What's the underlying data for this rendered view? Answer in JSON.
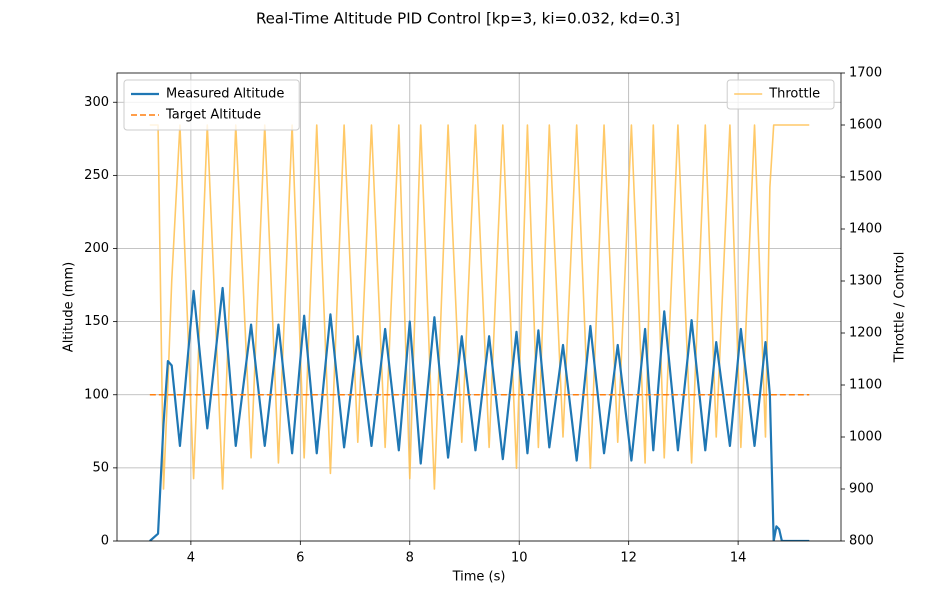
{
  "chart_data": {
    "type": "line",
    "title": "Real-Time Altitude PID Control [kp=3, ki=0.032, kd=0.3]",
    "xlabel": "Time (s)",
    "ylabel": "Altitude (mm)",
    "y2label": "Throttle / Control",
    "x": [
      3.25,
      3.4,
      3.5,
      3.58,
      3.65,
      3.8,
      4.05,
      4.3,
      4.58,
      4.82,
      5.1,
      5.35,
      5.6,
      5.85,
      6.07,
      6.3,
      6.55,
      6.8,
      7.05,
      7.3,
      7.55,
      7.8,
      8.0,
      8.2,
      8.45,
      8.7,
      8.95,
      9.2,
      9.45,
      9.7,
      9.95,
      10.15,
      10.35,
      10.55,
      10.8,
      11.05,
      11.3,
      11.55,
      11.8,
      12.05,
      12.3,
      12.45,
      12.65,
      12.9,
      13.15,
      13.4,
      13.6,
      13.85,
      14.05,
      14.3,
      14.5,
      14.58,
      14.65,
      14.7,
      14.75,
      14.8,
      15.3
    ],
    "series": [
      {
        "name": "Measured Altitude",
        "color": "#1f77b4",
        "width": 2.2,
        "values": [
          0,
          5,
          80,
          123,
          120,
          65,
          171,
          77,
          173,
          65,
          148,
          65,
          148,
          60,
          154,
          60,
          155,
          64,
          140,
          65,
          145,
          62,
          150,
          53,
          153,
          57,
          140,
          62,
          140,
          56,
          143,
          60,
          144,
          64,
          134,
          55,
          147,
          60,
          134,
          55,
          145,
          62,
          157,
          62,
          151,
          62,
          136,
          65,
          145,
          65,
          136,
          100,
          0,
          10,
          8,
          0,
          0
        ]
      },
      {
        "name": "Target Altitude",
        "color": "#ff7f0e",
        "width": 1.6,
        "linestyle": "dashed",
        "x": [
          3.25,
          15.3
        ],
        "values": [
          100,
          100
        ]
      },
      {
        "name": "Throttle",
        "color": "#ffc04d",
        "width": 1.6,
        "opacity": 0.85,
        "axis": "y2",
        "values": [
          1600,
          1600,
          900,
          1100,
          1300,
          1600,
          920,
          1600,
          900,
          1600,
          960,
          1600,
          950,
          1600,
          960,
          1600,
          930,
          1600,
          990,
          1600,
          980,
          1600,
          920,
          1600,
          900,
          1600,
          990,
          1600,
          980,
          1600,
          940,
          1600,
          980,
          1600,
          1000,
          1600,
          940,
          1600,
          990,
          1600,
          950,
          1600,
          960,
          1600,
          950,
          1600,
          1000,
          1600,
          980,
          1600,
          1000,
          1480,
          1600,
          1600,
          1600,
          1600,
          1600
        ]
      }
    ],
    "xlim": [
      2.65,
      15.88
    ],
    "xticks": [
      4,
      6,
      8,
      10,
      12,
      14
    ],
    "ylim": [
      0,
      320
    ],
    "yticks": [
      0,
      50,
      100,
      150,
      200,
      250,
      300
    ],
    "y2lim": [
      800,
      1700
    ],
    "y2ticks": [
      800,
      900,
      1000,
      1100,
      1200,
      1300,
      1400,
      1500,
      1600,
      1700
    ],
    "grid": true,
    "legend": "upper left",
    "legend2": "upper right"
  }
}
